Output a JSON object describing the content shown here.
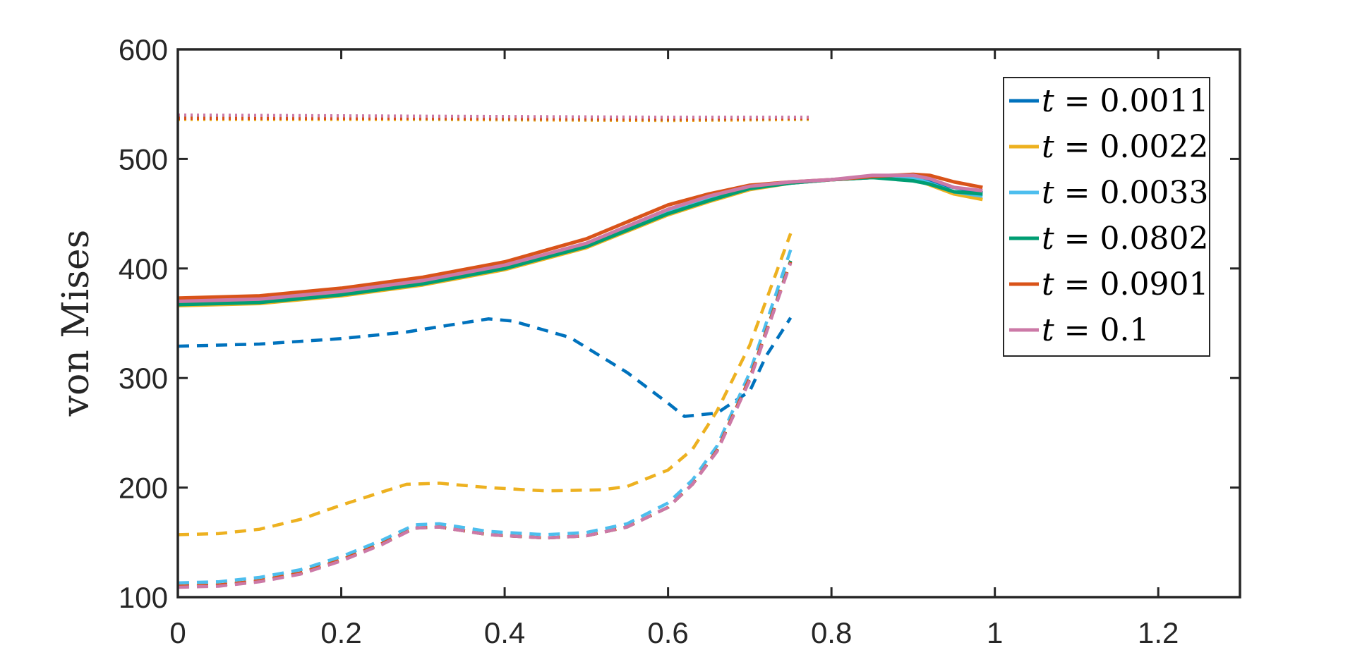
{
  "chart_data": {
    "type": "line",
    "title": "",
    "xlabel": "",
    "ylabel": "von Mises",
    "xlim": [
      0,
      1.3
    ],
    "ylim": [
      100,
      600
    ],
    "xticks": [
      0,
      0.2,
      0.4,
      0.6,
      0.8,
      1,
      1.2
    ],
    "yticks": [
      100,
      200,
      300,
      400,
      500,
      600
    ],
    "xtick_labels": [
      "0",
      "0.2",
      "0.4",
      "0.6",
      "0.8",
      "1",
      "1.2"
    ],
    "ytick_labels": [
      "100",
      "200",
      "300",
      "400",
      "500",
      "600"
    ],
    "grid": false,
    "legend_position": "top-right",
    "legend_var": "t",
    "series": [
      {
        "name": "0.0011",
        "color": "#0072BD",
        "solid": [
          [
            0,
            369
          ],
          [
            0.1,
            371
          ],
          [
            0.2,
            378
          ],
          [
            0.3,
            388
          ],
          [
            0.4,
            402
          ],
          [
            0.5,
            422
          ],
          [
            0.6,
            452
          ],
          [
            0.65,
            465
          ],
          [
            0.7,
            474
          ],
          [
            0.75,
            478
          ],
          [
            0.8,
            481
          ],
          [
            0.85,
            483
          ],
          [
            0.9,
            482
          ],
          [
            0.95,
            474
          ],
          [
            0.985,
            469
          ]
        ],
        "dashed": [
          [
            0,
            329
          ],
          [
            0.1,
            331
          ],
          [
            0.2,
            336
          ],
          [
            0.28,
            342
          ],
          [
            0.33,
            348
          ],
          [
            0.38,
            354
          ],
          [
            0.41,
            352
          ],
          [
            0.48,
            337
          ],
          [
            0.55,
            305
          ],
          [
            0.6,
            277
          ],
          [
            0.62,
            265
          ],
          [
            0.66,
            268
          ],
          [
            0.7,
            288
          ],
          [
            0.72,
            320
          ],
          [
            0.75,
            355
          ]
        ],
        "dotted": [
          [
            0,
            539
          ],
          [
            0.3,
            538
          ],
          [
            0.6,
            537
          ],
          [
            0.775,
            538
          ]
        ]
      },
      {
        "name": "0.0022",
        "color": "#EDB120",
        "solid": [
          [
            0,
            366
          ],
          [
            0.1,
            368
          ],
          [
            0.2,
            375
          ],
          [
            0.3,
            385
          ],
          [
            0.4,
            399
          ],
          [
            0.5,
            419
          ],
          [
            0.6,
            449
          ],
          [
            0.65,
            461
          ],
          [
            0.7,
            472
          ],
          [
            0.75,
            478
          ],
          [
            0.8,
            481
          ],
          [
            0.85,
            483
          ],
          [
            0.9,
            482
          ],
          [
            0.95,
            468
          ],
          [
            0.985,
            463
          ]
        ],
        "dashed": [
          [
            0,
            157
          ],
          [
            0.05,
            158
          ],
          [
            0.1,
            162
          ],
          [
            0.15,
            171
          ],
          [
            0.2,
            184
          ],
          [
            0.25,
            196
          ],
          [
            0.28,
            203
          ],
          [
            0.32,
            204
          ],
          [
            0.38,
            200
          ],
          [
            0.45,
            197
          ],
          [
            0.52,
            198
          ],
          [
            0.55,
            201
          ],
          [
            0.6,
            216
          ],
          [
            0.63,
            235
          ],
          [
            0.66,
            270
          ],
          [
            0.7,
            330
          ],
          [
            0.75,
            432
          ]
        ],
        "dotted": [
          [
            0,
            536
          ],
          [
            0.3,
            536
          ],
          [
            0.6,
            535
          ],
          [
            0.775,
            536
          ]
        ]
      },
      {
        "name": "0.0033",
        "color": "#4DBEEE",
        "solid": [
          [
            0,
            368
          ],
          [
            0.1,
            370
          ],
          [
            0.2,
            377
          ],
          [
            0.3,
            387
          ],
          [
            0.4,
            401
          ],
          [
            0.5,
            421
          ],
          [
            0.6,
            451
          ],
          [
            0.65,
            463
          ],
          [
            0.7,
            473
          ],
          [
            0.75,
            478
          ],
          [
            0.8,
            481
          ],
          [
            0.85,
            483
          ],
          [
            0.9,
            483
          ],
          [
            0.95,
            470
          ],
          [
            0.985,
            466
          ]
        ],
        "dashed": [
          [
            0,
            113
          ],
          [
            0.05,
            114
          ],
          [
            0.1,
            118
          ],
          [
            0.15,
            125
          ],
          [
            0.2,
            137
          ],
          [
            0.25,
            152
          ],
          [
            0.29,
            166
          ],
          [
            0.32,
            167
          ],
          [
            0.38,
            160
          ],
          [
            0.45,
            157
          ],
          [
            0.5,
            159
          ],
          [
            0.55,
            167
          ],
          [
            0.6,
            186
          ],
          [
            0.63,
            207
          ],
          [
            0.66,
            238
          ],
          [
            0.7,
            305
          ],
          [
            0.75,
            417
          ]
        ],
        "dotted": [
          [
            0,
            538
          ],
          [
            0.3,
            537
          ],
          [
            0.6,
            536
          ],
          [
            0.775,
            537
          ]
        ]
      },
      {
        "name": "0.0802",
        "color": "#009E73",
        "solid": [
          [
            0,
            367
          ],
          [
            0.1,
            369
          ],
          [
            0.2,
            376
          ],
          [
            0.3,
            386
          ],
          [
            0.4,
            400
          ],
          [
            0.5,
            420
          ],
          [
            0.6,
            450
          ],
          [
            0.65,
            462
          ],
          [
            0.7,
            473
          ],
          [
            0.75,
            478
          ],
          [
            0.8,
            481
          ],
          [
            0.85,
            483
          ],
          [
            0.9,
            480
          ],
          [
            0.92,
            477
          ],
          [
            0.95,
            470
          ],
          [
            0.985,
            468
          ]
        ],
        "dashed": [
          [
            0,
            110
          ],
          [
            0.05,
            111
          ],
          [
            0.1,
            115
          ],
          [
            0.15,
            122
          ],
          [
            0.2,
            134
          ],
          [
            0.25,
            149
          ],
          [
            0.29,
            163
          ],
          [
            0.32,
            164
          ],
          [
            0.38,
            157
          ],
          [
            0.45,
            154
          ],
          [
            0.5,
            156
          ],
          [
            0.55,
            164
          ],
          [
            0.6,
            182
          ],
          [
            0.63,
            203
          ],
          [
            0.66,
            234
          ],
          [
            0.7,
            300
          ],
          [
            0.75,
            407
          ]
        ],
        "dotted": [
          [
            0,
            538
          ],
          [
            0.3,
            537
          ],
          [
            0.6,
            536
          ],
          [
            0.775,
            537
          ]
        ]
      },
      {
        "name": "0.0901",
        "color": "#D95319",
        "solid": [
          [
            0,
            373
          ],
          [
            0.1,
            375
          ],
          [
            0.2,
            382
          ],
          [
            0.3,
            392
          ],
          [
            0.4,
            406
          ],
          [
            0.5,
            427
          ],
          [
            0.6,
            458
          ],
          [
            0.65,
            468
          ],
          [
            0.7,
            476
          ],
          [
            0.75,
            479
          ],
          [
            0.8,
            481
          ],
          [
            0.85,
            484
          ],
          [
            0.9,
            486
          ],
          [
            0.92,
            485
          ],
          [
            0.95,
            479
          ],
          [
            0.985,
            474
          ]
        ],
        "dashed": [
          [
            0,
            110
          ],
          [
            0.05,
            111
          ],
          [
            0.1,
            115
          ],
          [
            0.15,
            122
          ],
          [
            0.2,
            134
          ],
          [
            0.25,
            149
          ],
          [
            0.29,
            163
          ],
          [
            0.32,
            164
          ],
          [
            0.38,
            157
          ],
          [
            0.45,
            154
          ],
          [
            0.5,
            156
          ],
          [
            0.55,
            164
          ],
          [
            0.6,
            182
          ],
          [
            0.63,
            203
          ],
          [
            0.66,
            234
          ],
          [
            0.7,
            300
          ],
          [
            0.75,
            406
          ]
        ],
        "dotted": [
          [
            0,
            537
          ],
          [
            0.3,
            537
          ],
          [
            0.6,
            536
          ],
          [
            0.775,
            537
          ]
        ]
      },
      {
        "name": "0.1",
        "color": "#CC79A7",
        "solid": [
          [
            0,
            370
          ],
          [
            0.1,
            372
          ],
          [
            0.2,
            379
          ],
          [
            0.3,
            389
          ],
          [
            0.4,
            403
          ],
          [
            0.5,
            423
          ],
          [
            0.6,
            454
          ],
          [
            0.65,
            466
          ],
          [
            0.7,
            475
          ],
          [
            0.75,
            479
          ],
          [
            0.8,
            481
          ],
          [
            0.85,
            485
          ],
          [
            0.9,
            485
          ],
          [
            0.92,
            482
          ],
          [
            0.95,
            474
          ],
          [
            0.985,
            471
          ]
        ],
        "dashed": [
          [
            0,
            109
          ],
          [
            0.05,
            110
          ],
          [
            0.1,
            114
          ],
          [
            0.15,
            121
          ],
          [
            0.2,
            133
          ],
          [
            0.25,
            148
          ],
          [
            0.29,
            163
          ],
          [
            0.32,
            164
          ],
          [
            0.38,
            157
          ],
          [
            0.45,
            154
          ],
          [
            0.5,
            156
          ],
          [
            0.55,
            164
          ],
          [
            0.6,
            182
          ],
          [
            0.63,
            203
          ],
          [
            0.66,
            233
          ],
          [
            0.7,
            298
          ],
          [
            0.75,
            405
          ]
        ],
        "dotted": [
          [
            0,
            540
          ],
          [
            0.3,
            539
          ],
          [
            0.6,
            538
          ],
          [
            0.775,
            538
          ]
        ]
      }
    ]
  }
}
